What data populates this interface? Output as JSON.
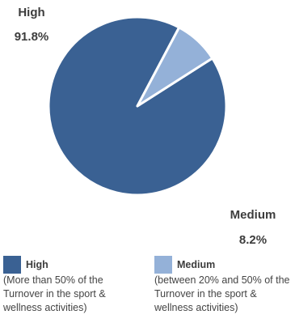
{
  "chart_data": {
    "type": "pie",
    "slices": [
      {
        "name": "High",
        "value": 91.8,
        "pct_label": "91.8%",
        "color": "#3a6193",
        "description": "(More than 50% of the Turnover in the sport & wellness activities)"
      },
      {
        "name": "Medium",
        "value": 8.2,
        "pct_label": "8.2%",
        "color": "#94b1d8",
        "description": "(between 20% and 50% of the Turnover in the sport & wellness activities)"
      }
    ],
    "start_angle_deg": 62,
    "direction": "counterclockwise",
    "slice_border_color": "#ffffff"
  }
}
